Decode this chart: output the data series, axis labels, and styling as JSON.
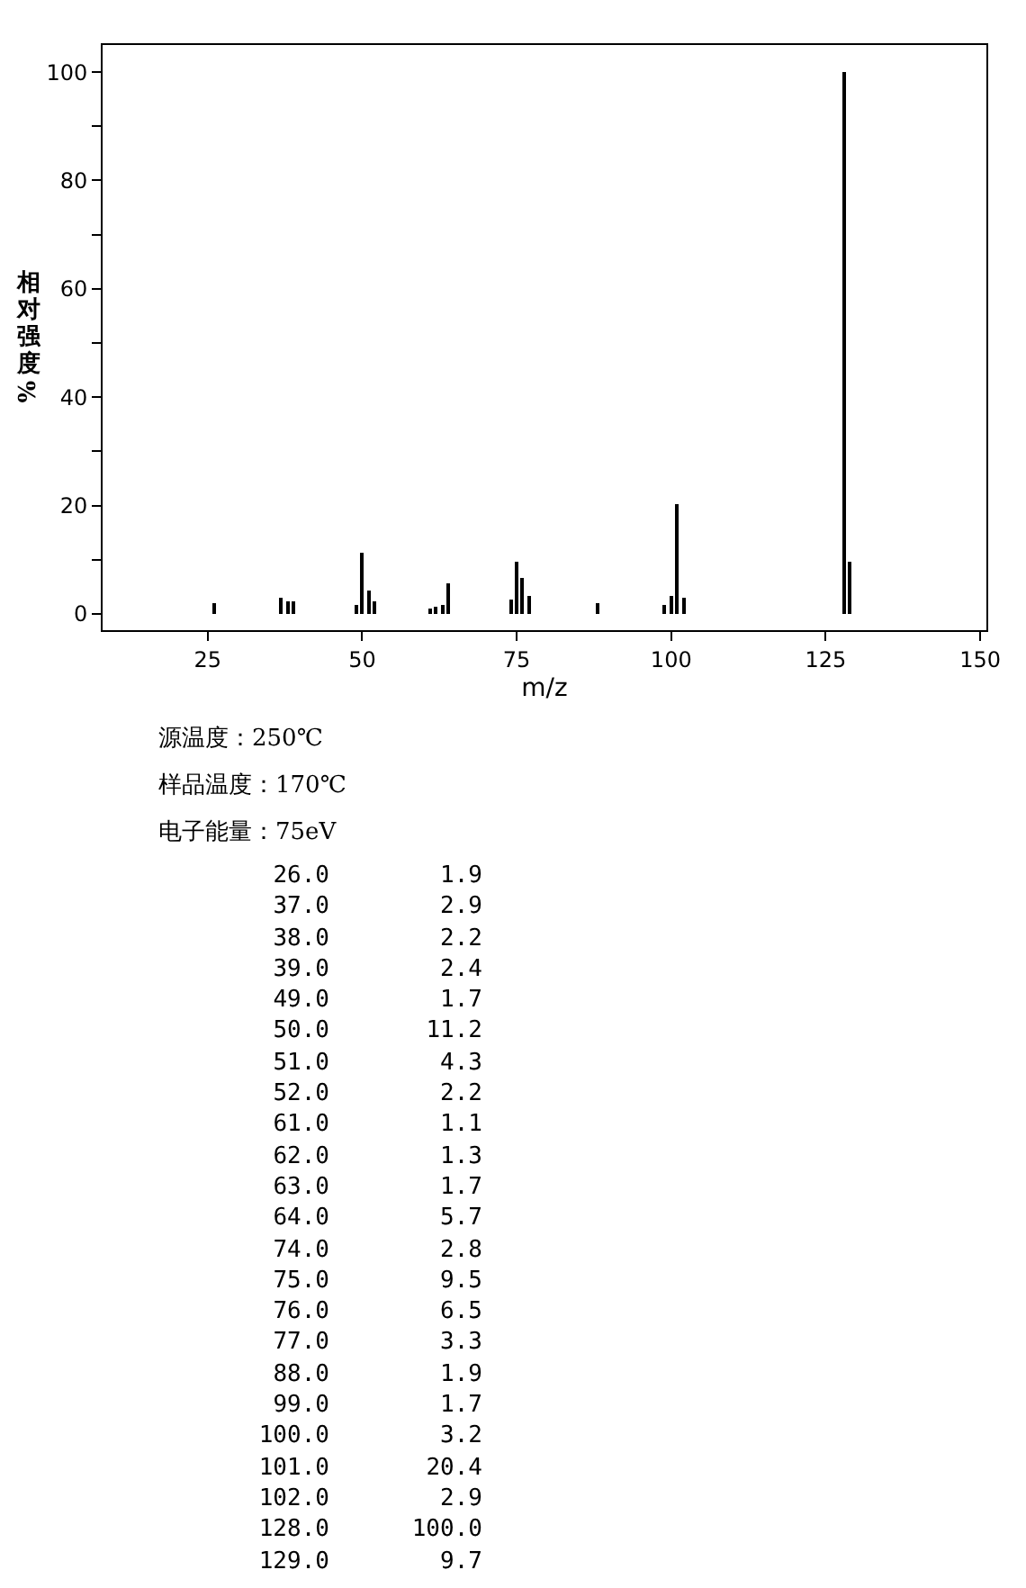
{
  "chart_data": [
    {
      "type": "bar",
      "xlabel": "m/z",
      "ylabel": "相对强度%",
      "x": [
        26,
        37,
        38,
        39,
        49,
        50,
        51,
        52,
        61,
        62,
        63,
        64,
        74,
        75,
        76,
        77,
        88,
        99,
        100,
        101,
        102,
        128,
        129
      ],
      "values": [
        1.9,
        2.9,
        2.2,
        2.4,
        1.7,
        11.2,
        4.3,
        2.2,
        1.1,
        1.3,
        1.7,
        5.7,
        2.8,
        9.5,
        6.5,
        3.3,
        1.9,
        1.7,
        3.2,
        20.4,
        2.9,
        100,
        9.7
      ],
      "color": "#000000",
      "xlim": [
        8,
        151
      ],
      "xticks": [
        25,
        50,
        75,
        100,
        125,
        150
      ],
      "ylim": [
        -3,
        105
      ],
      "yticks": [
        0,
        {
          "value": 10,
          "label": null
        },
        20,
        {
          "value": 30,
          "label": null
        },
        40,
        {
          "value": 50,
          "label": null
        },
        60,
        {
          "value": 70,
          "label": null
        },
        80,
        {
          "value": 90,
          "label": null
        },
        100
      ],
      "annotations": [
        "源温度：250℃",
        "样品温度：170℃",
        "电子能量：75eV"
      ]
    },
    {
      "type": "other",
      "categories": [
        "26.0",
        "37.0",
        "38.0",
        "39.0",
        "49.0",
        "50.0",
        "51.0",
        "52.0",
        "61.0",
        "62.0",
        "63.0",
        "64.0",
        "74.0",
        "75.0",
        "76.0",
        "77.0",
        "88.0",
        "99.0",
        "100.0",
        "101.0",
        "102.0",
        "128.0",
        "129.0"
      ],
      "value_labels": [
        "1.9",
        "2.9",
        "2.2",
        "2.4",
        "1.7",
        "11.2",
        "4.3",
        "2.2",
        "1.1",
        "1.3",
        "1.7",
        "5.7",
        "2.8",
        "9.5",
        "6.5",
        "3.3",
        "1.9",
        "1.7",
        "3.2",
        "20.4",
        "2.9",
        "100.0",
        "9.7"
      ]
    }
  ]
}
